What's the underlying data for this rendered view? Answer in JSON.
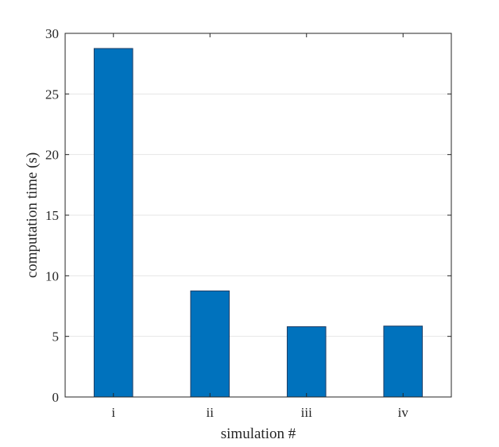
{
  "chart_data": {
    "type": "bar",
    "categories": [
      "i",
      "ii",
      "iii",
      "iv"
    ],
    "values": [
      28.75,
      8.75,
      5.8,
      5.85
    ],
    "title": "",
    "xlabel": "simulation #",
    "ylabel": "computation time (s)",
    "ylim": [
      0,
      30
    ],
    "yticks": [
      0,
      5,
      10,
      15,
      20,
      25,
      30
    ],
    "grid": "horizontal",
    "bar_color": "#0072bd",
    "bar_edge_color": "#1f3f66",
    "axis_color": "#262626",
    "grid_color": "#e6e6e6"
  }
}
